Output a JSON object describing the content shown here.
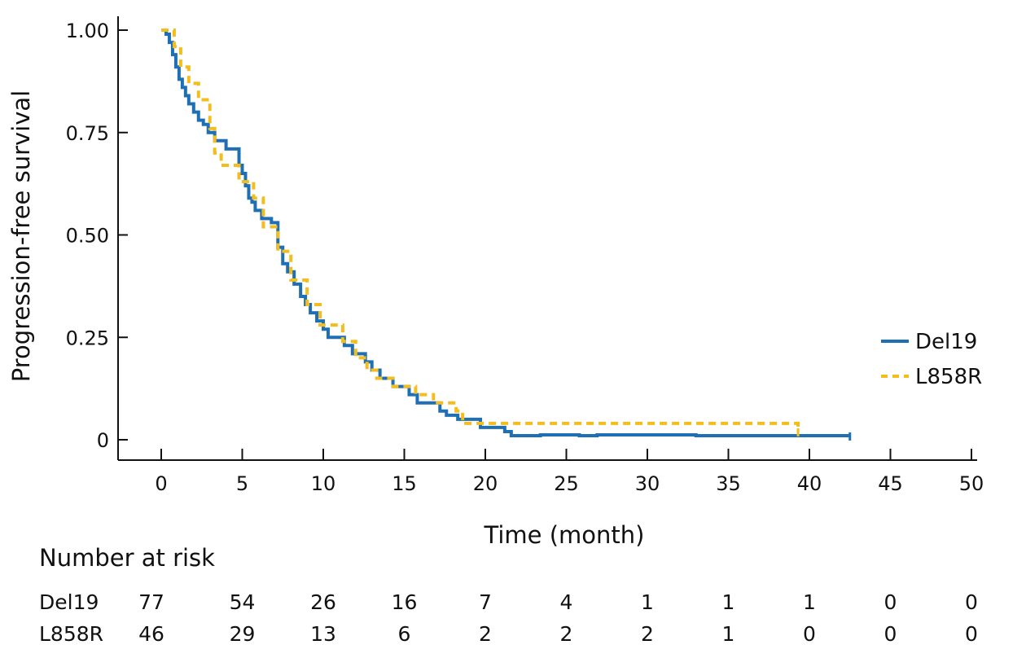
{
  "chart_data": {
    "type": "line",
    "title": "",
    "xlabel": "Time (month)",
    "ylabel": "Progression-free survival",
    "xlim": [
      0,
      50
    ],
    "ylim": [
      0,
      1
    ],
    "x_ticks": [
      0,
      5,
      10,
      15,
      20,
      25,
      30,
      35,
      40,
      45,
      50
    ],
    "y_ticks": [
      {
        "value": 0,
        "label": "0"
      },
      {
        "value": 0.25,
        "label": "0.25"
      },
      {
        "value": 0.5,
        "label": "0.50"
      },
      {
        "value": 0.75,
        "label": "0.75"
      },
      {
        "value": 1,
        "label": "1.00"
      }
    ],
    "grid": false,
    "legend_position": "right",
    "series": [
      {
        "name": "Del19",
        "color": "#1f6fb5",
        "style": "solid",
        "step": true,
        "x": [
          0,
          0.3,
          0.5,
          0.7,
          0.9,
          1.1,
          1.3,
          1.5,
          1.7,
          2.0,
          2.3,
          2.6,
          2.9,
          3.3,
          4.0,
          4.8,
          5.0,
          5.2,
          5.4,
          5.6,
          5.8,
          6.2,
          6.8,
          7.2,
          7.5,
          7.8,
          8.2,
          8.6,
          8.9,
          9.2,
          9.6,
          10.0,
          10.3,
          11.3,
          11.8,
          12.6,
          13.0,
          13.5,
          14.3,
          15.3,
          15.8,
          17.2,
          17.6,
          18.3,
          19.7,
          21.2,
          21.6,
          23.4,
          25.8,
          26.1,
          26.9,
          33.0,
          42.5
        ],
        "y": [
          1.0,
          0.99,
          0.97,
          0.94,
          0.91,
          0.88,
          0.86,
          0.84,
          0.82,
          0.8,
          0.78,
          0.77,
          0.75,
          0.73,
          0.71,
          0.67,
          0.65,
          0.62,
          0.59,
          0.58,
          0.56,
          0.54,
          0.53,
          0.47,
          0.43,
          0.41,
          0.38,
          0.35,
          0.33,
          0.31,
          0.29,
          0.27,
          0.25,
          0.23,
          0.21,
          0.19,
          0.17,
          0.15,
          0.13,
          0.11,
          0.09,
          0.07,
          0.06,
          0.05,
          0.03,
          0.02,
          0.01,
          0.012,
          0.01,
          0.01,
          0.012,
          0.01,
          0.01
        ]
      },
      {
        "name": "L858R",
        "color": "#f2bd1d",
        "style": "dashed",
        "step": true,
        "x": [
          0,
          0.8,
          1.2,
          1.7,
          2.3,
          3.0,
          3.3,
          3.7,
          4.8,
          5.7,
          6.3,
          7.2,
          8.0,
          9.0,
          9.8,
          11.2,
          12.0,
          12.7,
          13.3,
          14.3,
          15.7,
          16.8,
          18.2,
          18.6,
          30.2,
          39.3
        ],
        "y": [
          1.0,
          0.96,
          0.91,
          0.87,
          0.83,
          0.76,
          0.7,
          0.67,
          0.63,
          0.59,
          0.52,
          0.46,
          0.39,
          0.33,
          0.28,
          0.24,
          0.2,
          0.17,
          0.15,
          0.13,
          0.11,
          0.09,
          0.07,
          0.04,
          0.04,
          0.02
        ]
      }
    ]
  },
  "risk_table": {
    "title": "Number at risk",
    "rows": [
      {
        "label": "Del19",
        "values": [
          "77",
          "54",
          "26",
          "16",
          "7",
          "4",
          "1",
          "1",
          "1",
          "0",
          "0"
        ]
      },
      {
        "label": "L858R",
        "values": [
          "46",
          "29",
          "13",
          "6",
          "2",
          "2",
          "2",
          "1",
          "0",
          "0",
          "0"
        ]
      }
    ]
  }
}
